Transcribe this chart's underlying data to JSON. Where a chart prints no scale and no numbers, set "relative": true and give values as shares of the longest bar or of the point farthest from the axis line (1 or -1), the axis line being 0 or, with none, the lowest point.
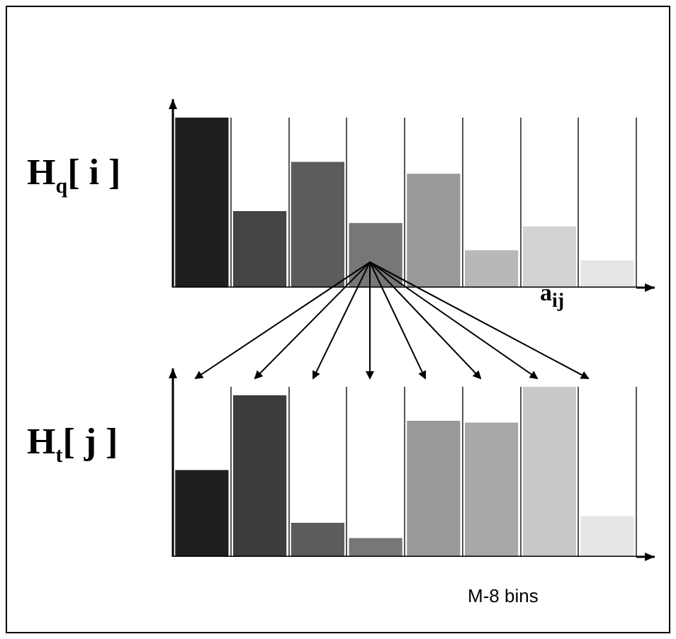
{
  "chart_data": [
    {
      "type": "bar",
      "ylabel": "H$_{q}$[ i ]",
      "categories": [
        null,
        null,
        null,
        null,
        null,
        null,
        null,
        null
      ],
      "values": [
        1,
        0.45,
        0.74,
        0.38,
        0.67,
        0.22,
        0.36,
        0.16
      ],
      "colors": [
        "#1e1e1e",
        "#444444",
        "#5c5c5c",
        "#777777",
        "#999999",
        "#b8b8b8",
        "#d2d2d2",
        "#e6e6e6"
      ],
      "relative": true,
      "grid": "x",
      "tick_labels": false,
      "legend": false
    },
    {
      "type": "bar",
      "ylabel": "H$_{t}$[ j ]",
      "categories": [
        null,
        null,
        null,
        null,
        null,
        null,
        null,
        null
      ],
      "values": [
        0.51,
        0.95,
        0.2,
        0.11,
        0.8,
        0.79,
        1,
        0.24
      ],
      "colors": [
        "#1e1e1e",
        "#3c3c3c",
        "#5c5c5c",
        "#777777",
        "#999999",
        "#a8a8a8",
        "#c8c8c8",
        "#e6e6e6"
      ],
      "relative": true,
      "grid": "x",
      "tick_labels": false,
      "legend": false,
      "annotations": [
        "a$_{ij}$",
        "M-8 bins"
      ]
    }
  ]
}
